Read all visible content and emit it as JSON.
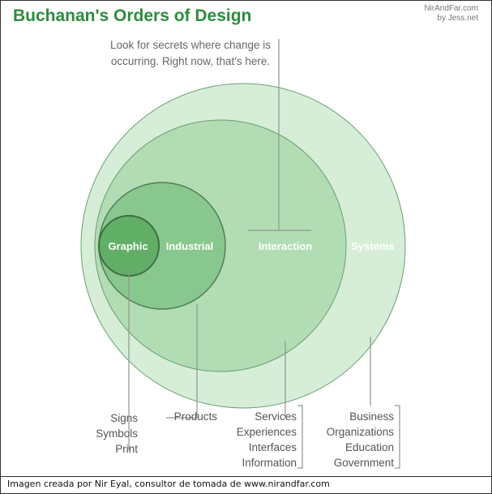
{
  "title": "Buchanan's Orders of Design",
  "credit": {
    "line1": "NirAndFar.com",
    "line2": "by Jess.net"
  },
  "callout": {
    "line1": "Look for secrets where change is",
    "line2": "occurring. Right now, that's here."
  },
  "orders": [
    {
      "label": "Graphic",
      "examples": [
        "Signs",
        "Symbols",
        "Print"
      ]
    },
    {
      "label": "Industrial",
      "examples": [
        "Products"
      ]
    },
    {
      "label": "Interaction",
      "examples": [
        "Services",
        "Experiences",
        "Interfaces",
        "Information"
      ]
    },
    {
      "label": "Systems",
      "examples": [
        "Business",
        "Organizations",
        "Education",
        "Government"
      ]
    }
  ],
  "caption": "Imagen creada por Nir Eyal, consultor de tomada de  www.nirandfar.com",
  "colors": {
    "title": "#2e8b3e",
    "line": "#9aa39a",
    "text": "#555555",
    "circle_fill": "#5fb865"
  }
}
